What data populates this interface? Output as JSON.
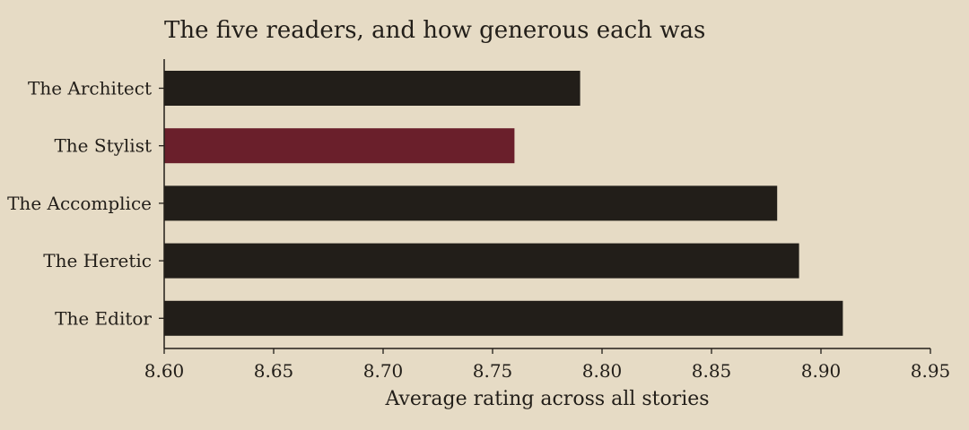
{
  "chart_data": {
    "type": "bar",
    "orientation": "horizontal",
    "title": "The five readers, and how generous each was",
    "xlabel": "Average rating across all stories",
    "ylabel": "",
    "categories": [
      "The Architect",
      "The Stylist",
      "The Accomplice",
      "The Heretic",
      "The Editor"
    ],
    "values": [
      8.79,
      8.76,
      8.88,
      8.89,
      8.91
    ],
    "xlim": [
      8.6,
      8.95
    ],
    "xticks": [
      "8.60",
      "8.65",
      "8.70",
      "8.75",
      "8.80",
      "8.85",
      "8.90",
      "8.95"
    ],
    "highlight_category": "The Stylist",
    "grid": false,
    "colors": {
      "background": "#e6dbc5",
      "bar": "#221e19",
      "highlight": "#6a1f2b",
      "axis": "#221e19",
      "text": "#221e19"
    }
  }
}
